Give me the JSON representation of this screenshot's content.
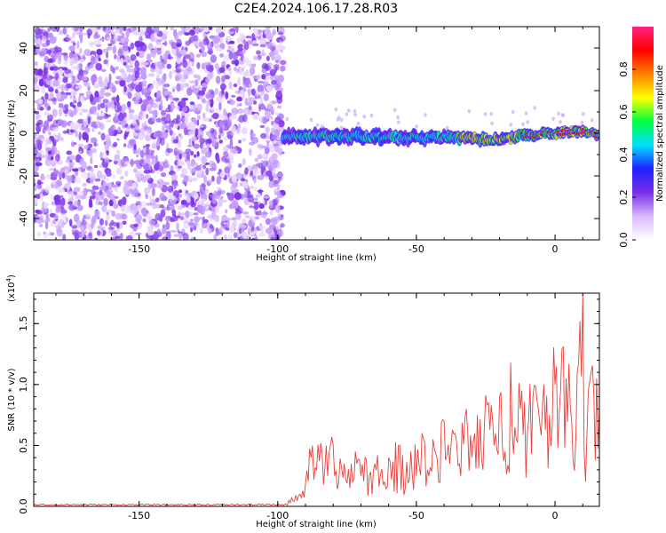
{
  "title": "C2E4.2024.106.17.28.R03",
  "chart_data": [
    {
      "type": "heatmap",
      "xlabel": "Height of straight line (km)",
      "ylabel": "Frequency (Hz)",
      "xlim": [
        -188,
        16
      ],
      "ylim": [
        -50,
        50
      ],
      "xticks": [
        -150,
        -100,
        -50,
        0
      ],
      "xtick_labels": [
        "-150",
        "-100",
        "-50",
        "0"
      ],
      "yticks": [
        -40,
        -20,
        0,
        20,
        40
      ],
      "ytick_labels": [
        "-40",
        "-20",
        "0",
        "20",
        "40"
      ],
      "noise_region_x": [
        -188,
        -98
      ],
      "signal_band": [
        {
          "x": -98,
          "freq": -2
        },
        {
          "x": -80,
          "freq": -1
        },
        {
          "x": -60,
          "freq": -2
        },
        {
          "x": -40,
          "freq": -2
        },
        {
          "x": -20,
          "freq": -3
        },
        {
          "x": -10,
          "freq": -1
        },
        {
          "x": 0,
          "freq": 0
        },
        {
          "x": 10,
          "freq": 1
        },
        {
          "x": 16,
          "freq": -1
        }
      ],
      "colorbar": {
        "label": "Normalized spectral amplitude",
        "range": [
          0,
          1
        ],
        "ticks": [
          0.0,
          0.2,
          0.4,
          0.6,
          0.8
        ],
        "tick_labels": [
          "0.0",
          "0.2",
          "0.4",
          "0.6",
          "0.8"
        ],
        "colors": [
          "#ffffff",
          "#d8b8ff",
          "#7a2ee6",
          "#2020ff",
          "#00e0ff",
          "#00ff40",
          "#ffff00",
          "#ff8000",
          "#ff0000",
          "#ff2080"
        ]
      },
      "grid": false
    },
    {
      "type": "line",
      "xlabel": "Height of straight line (km)",
      "ylabel": "SNR (10 * v/v)",
      "y_multiplier": "(x10",
      "y_multiplier_exp": "4",
      "y_multiplier_close": ")",
      "xlim": [
        -188,
        16
      ],
      "ylim": [
        0,
        1.75
      ],
      "xticks": [
        -150,
        -100,
        -50,
        0
      ],
      "xtick_labels": [
        "-150",
        "-100",
        "-50",
        "0"
      ],
      "yticks": [
        0.0,
        0.5,
        1.0,
        1.5
      ],
      "ytick_labels": [
        "0.0",
        "0.5",
        "1.0",
        "1.5"
      ],
      "series": [
        {
          "color": "#e8403a",
          "x": [
            -188,
            -150,
            -120,
            -100,
            -96,
            -92,
            -90,
            -88,
            -86,
            -84,
            -82,
            -80,
            -78,
            -76,
            -74,
            -72,
            -70,
            -68,
            -66,
            -64,
            -62,
            -60,
            -58,
            -56,
            -54,
            -52,
            -50,
            -48,
            -46,
            -44,
            -42,
            -40,
            -38,
            -36,
            -34,
            -32,
            -30,
            -28,
            -26,
            -24,
            -22,
            -20,
            -18,
            -16,
            -14,
            -12,
            -10,
            -8,
            -6,
            -4,
            -2,
            0,
            2,
            4,
            6,
            8,
            10,
            11,
            12,
            13,
            14,
            15,
            16
          ],
          "y": [
            0.01,
            0.01,
            0.01,
            0.01,
            0.05,
            0.1,
            0.18,
            0.4,
            0.3,
            0.45,
            0.25,
            0.5,
            0.2,
            0.35,
            0.15,
            0.45,
            0.25,
            0.38,
            0.1,
            0.42,
            0.18,
            0.4,
            0.12,
            0.5,
            0.15,
            0.45,
            0.25,
            0.6,
            0.3,
            0.55,
            0.2,
            0.7,
            0.35,
            0.6,
            0.25,
            0.8,
            0.4,
            0.75,
            0.3,
            0.85,
            0.5,
            0.9,
            0.45,
            1.18,
            0.55,
            0.95,
            0.6,
            0.9,
            0.8,
            1.0,
            0.75,
            1.0,
            0.95,
            1.05,
            0.7,
            1.1,
            1.75,
            0.2,
            0.95,
            1.1,
            0.9,
            1.05,
            0.82
          ]
        }
      ],
      "grid": false
    }
  ]
}
